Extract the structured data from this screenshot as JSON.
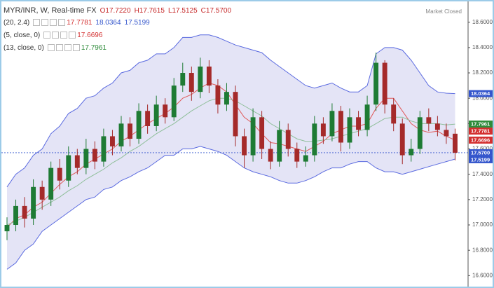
{
  "chart_data": {
    "type": "candlestick",
    "title": "MYR/INR, W, Real-time FX",
    "ohlc_readout": [
      {
        "value": 17.722,
        "label": "O17.7220"
      },
      {
        "value": 17.7615,
        "label": "H17.7615"
      },
      {
        "value": 17.5125,
        "label": "L17.5125"
      },
      {
        "value": 17.57,
        "label": "C17.5700"
      }
    ],
    "status": "Market Closed",
    "up_color": "#1e7b34",
    "down_color": "#a52a2a",
    "open": [
      16.95,
      17.0,
      17.15,
      17.05,
      17.3,
      17.2,
      17.45,
      17.35,
      17.55,
      17.45,
      17.6,
      17.5,
      17.7,
      17.62,
      17.8,
      17.68,
      17.9,
      17.78,
      17.95,
      17.85,
      18.1,
      18.2,
      18.05,
      18.25,
      18.1,
      17.95,
      18.05,
      17.7,
      17.55,
      17.85,
      17.6,
      17.5,
      17.75,
      17.6,
      17.5,
      17.55,
      17.8,
      17.7,
      17.9,
      17.65,
      17.85,
      17.75,
      17.95,
      18.28,
      17.95,
      17.8,
      17.55,
      17.6,
      17.85,
      17.8,
      17.75,
      17.72
    ],
    "high": [
      17.06,
      17.2,
      17.22,
      17.36,
      17.35,
      17.5,
      17.52,
      17.62,
      17.6,
      17.68,
      17.66,
      17.76,
      17.75,
      17.86,
      17.85,
      17.96,
      17.95,
      18.02,
      18.0,
      18.16,
      18.28,
      18.25,
      18.32,
      18.3,
      18.15,
      18.12,
      18.1,
      17.76,
      17.92,
      17.9,
      17.66,
      17.82,
      17.8,
      17.65,
      17.62,
      17.86,
      17.85,
      17.96,
      17.94,
      17.92,
      17.9,
      18.02,
      18.36,
      18.3,
      18.0,
      17.84,
      17.68,
      17.9,
      17.92,
      17.86,
      17.8,
      17.76
    ],
    "low": [
      16.88,
      16.95,
      16.98,
      17.0,
      17.12,
      17.15,
      17.28,
      17.3,
      17.4,
      17.4,
      17.44,
      17.46,
      17.55,
      17.58,
      17.62,
      17.64,
      17.72,
      17.74,
      17.8,
      17.82,
      18.05,
      17.98,
      18.0,
      18.04,
      17.88,
      17.9,
      17.62,
      17.45,
      17.5,
      17.52,
      17.44,
      17.46,
      17.54,
      17.45,
      17.46,
      17.5,
      17.64,
      17.66,
      17.58,
      17.6,
      17.7,
      17.7,
      17.9,
      17.88,
      17.74,
      17.48,
      17.5,
      17.56,
      17.74,
      17.7,
      17.64,
      17.51
    ],
    "close": [
      17.0,
      17.15,
      17.05,
      17.3,
      17.2,
      17.45,
      17.35,
      17.55,
      17.45,
      17.6,
      17.5,
      17.7,
      17.62,
      17.8,
      17.68,
      17.9,
      17.78,
      17.95,
      17.85,
      18.1,
      18.2,
      18.05,
      18.25,
      18.1,
      17.95,
      18.05,
      17.7,
      17.55,
      17.85,
      17.6,
      17.5,
      17.75,
      17.6,
      17.5,
      17.55,
      17.8,
      17.7,
      17.9,
      17.65,
      17.85,
      17.75,
      17.95,
      18.28,
      17.95,
      17.8,
      17.55,
      17.6,
      17.85,
      17.8,
      17.75,
      17.7,
      17.57
    ],
    "last_price": {
      "value": 17.57,
      "label": "17.5700",
      "color": "#3355cc"
    },
    "indicators": [
      {
        "name": "(20, 2.4)",
        "readouts": [
          17.7781,
          18.0364,
          17.5199
        ],
        "readout_colors": [
          "#d32f2f",
          "#3355cc",
          "#3355cc"
        ],
        "band_color": "#5a6ae0",
        "band_fill": "#e4e4f6",
        "upper": [
          17.3,
          17.4,
          17.45,
          17.55,
          17.6,
          17.72,
          17.78,
          17.88,
          17.92,
          18.0,
          18.02,
          18.08,
          18.12,
          18.2,
          18.22,
          18.28,
          18.3,
          18.35,
          18.35,
          18.4,
          18.48,
          18.48,
          18.5,
          18.5,
          18.48,
          18.45,
          18.42,
          18.4,
          18.38,
          18.36,
          18.3,
          18.25,
          18.2,
          18.15,
          18.1,
          18.08,
          18.1,
          18.12,
          18.08,
          18.05,
          18.05,
          18.1,
          18.35,
          18.4,
          18.4,
          18.38,
          18.3,
          18.2,
          18.1,
          18.05,
          18.04,
          18.0364
        ],
        "lower": [
          16.65,
          16.7,
          16.8,
          16.85,
          16.95,
          17.0,
          17.05,
          17.1,
          17.15,
          17.2,
          17.22,
          17.28,
          17.3,
          17.35,
          17.38,
          17.42,
          17.45,
          17.5,
          17.55,
          17.55,
          17.6,
          17.6,
          17.62,
          17.6,
          17.58,
          17.55,
          17.5,
          17.45,
          17.42,
          17.4,
          17.38,
          17.35,
          17.33,
          17.33,
          17.35,
          17.38,
          17.42,
          17.45,
          17.45,
          17.48,
          17.5,
          17.5,
          17.45,
          17.42,
          17.42,
          17.4,
          17.42,
          17.44,
          17.46,
          17.48,
          17.5,
          17.5199
        ]
      },
      {
        "name": "(5, close, 0)",
        "readouts": [
          17.6696
        ],
        "readout_colors": [
          "#d32f2f"
        ],
        "color": "#e05a5a",
        "values": [
          16.98,
          17.05,
          17.08,
          17.14,
          17.18,
          17.25,
          17.32,
          17.38,
          17.42,
          17.48,
          17.52,
          17.56,
          17.6,
          17.66,
          17.7,
          17.75,
          17.8,
          17.84,
          17.88,
          17.93,
          18.0,
          18.03,
          18.08,
          18.12,
          18.1,
          18.05,
          17.95,
          17.85,
          17.8,
          17.72,
          17.65,
          17.64,
          17.62,
          17.6,
          17.58,
          17.62,
          17.66,
          17.72,
          17.75,
          17.78,
          17.78,
          17.8,
          17.92,
          18.0,
          18.0,
          17.9,
          17.8,
          17.75,
          17.73,
          17.74,
          17.7,
          17.6696
        ]
      },
      {
        "name": "(13, close, 0)",
        "readouts": [
          17.7961
        ],
        "readout_colors": [
          "#2e8b3a"
        ],
        "color": "#8fbf9a",
        "values": [
          17.0,
          17.03,
          17.06,
          17.1,
          17.14,
          17.18,
          17.22,
          17.27,
          17.31,
          17.36,
          17.4,
          17.44,
          17.49,
          17.53,
          17.58,
          17.62,
          17.67,
          17.72,
          17.76,
          17.8,
          17.85,
          17.9,
          17.94,
          17.98,
          18.0,
          18.0,
          17.98,
          17.94,
          17.9,
          17.86,
          17.8,
          17.76,
          17.72,
          17.68,
          17.66,
          17.66,
          17.67,
          17.68,
          17.7,
          17.72,
          17.74,
          17.76,
          17.8,
          17.84,
          17.85,
          17.85,
          17.82,
          17.8,
          17.8,
          17.8,
          17.79,
          17.7961
        ]
      }
    ],
    "ylim": [
      16.53,
      18.72
    ],
    "yticks": [
      {
        "value": 16.6,
        "label": "16.6000"
      },
      {
        "value": 16.8,
        "label": "16.8000"
      },
      {
        "value": 17,
        "label": "17.0000"
      },
      {
        "value": 17.2,
        "label": "17.2000"
      },
      {
        "value": 17.4,
        "label": "17.4000"
      },
      {
        "value": 17.6,
        "label": "17.6000"
      },
      {
        "value": 17.8,
        "label": "17.8000"
      },
      {
        "value": 18,
        "label": "18.0000"
      },
      {
        "value": 18.2,
        "label": "18.2000"
      },
      {
        "value": 18.4,
        "label": "18.4000"
      },
      {
        "value": 18.6,
        "label": "18.6000"
      }
    ]
  }
}
